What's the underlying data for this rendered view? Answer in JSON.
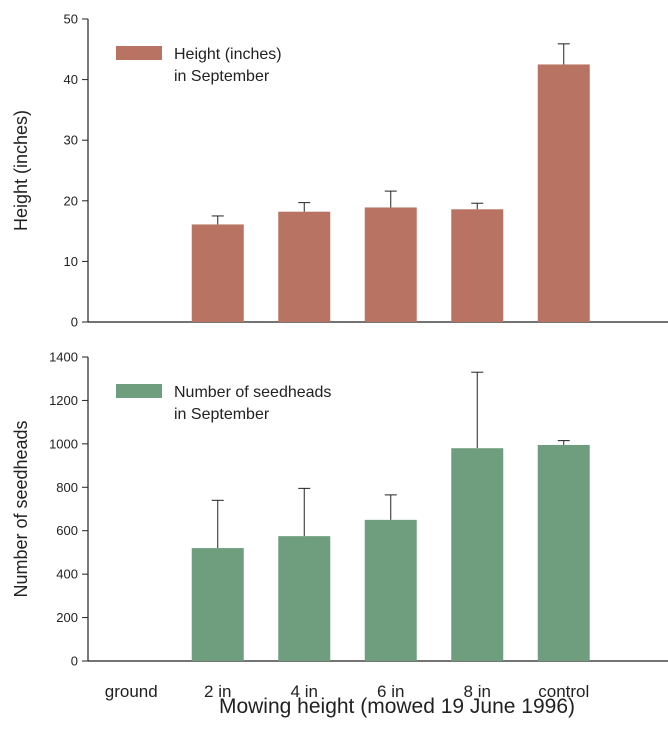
{
  "chart_data": [
    {
      "type": "bar",
      "categories": [
        "ground",
        "2 in",
        "4 in",
        "6 in",
        "8 in",
        "control"
      ],
      "values": [
        0,
        16.1,
        18.2,
        18.9,
        18.6,
        42.5
      ],
      "errors": [
        0,
        1.4,
        1.5,
        2.7,
        1.0,
        3.4
      ],
      "ylabel": "Height (inches)",
      "ylim": [
        0,
        50
      ],
      "yticks": [
        0,
        10,
        20,
        30,
        40,
        50
      ],
      "legend": [
        "Height (inches)",
        "in September"
      ],
      "bar_color": "#b87362"
    },
    {
      "type": "bar",
      "categories": [
        "ground",
        "2 in",
        "4 in",
        "6 in",
        "8 in",
        "control"
      ],
      "values": [
        0,
        520,
        575,
        650,
        980,
        995
      ],
      "errors": [
        0,
        220,
        220,
        115,
        350,
        20
      ],
      "ylabel": "Number of seedheads",
      "ylim": [
        0,
        1400
      ],
      "yticks": [
        0,
        200,
        400,
        600,
        800,
        1000,
        1200,
        1400
      ],
      "legend": [
        "Number of seedheads",
        "in September"
      ],
      "bar_color": "#6f9e7e"
    }
  ],
  "xlabel": "Mowing height (mowed 19 June 1996)"
}
